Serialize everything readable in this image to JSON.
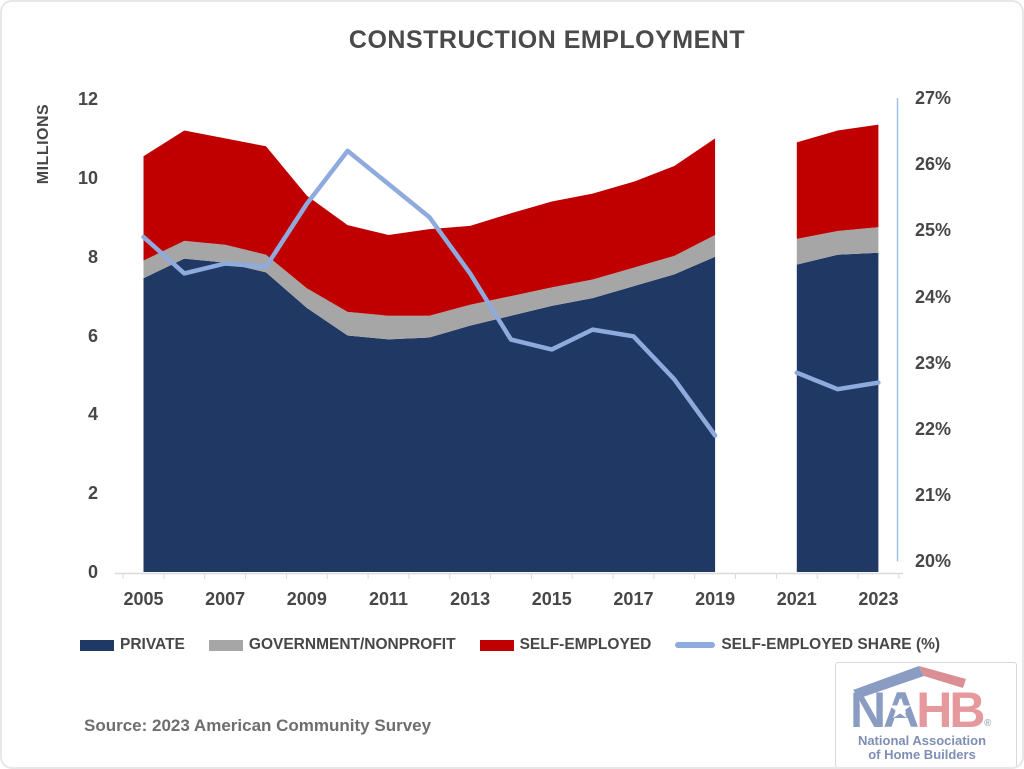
{
  "title": "CONSTRUCTION EMPLOYMENT",
  "source_note": "Source: 2023 American Community Survey",
  "legend": {
    "items": [
      {
        "label": "PRIVATE",
        "color": "#1F3864",
        "swatch": "area"
      },
      {
        "label": "GOVERNMENT/NONPROFIT",
        "color": "#A6A6A6",
        "swatch": "area"
      },
      {
        "label": "SELF-EMPLOYED",
        "color": "#C00000",
        "swatch": "area"
      },
      {
        "label": "SELF-EMPLOYED SHARE (%)",
        "color": "#8FAADC",
        "swatch": "line"
      }
    ]
  },
  "logo": {
    "brand_na": "NA",
    "brand_hb": "HB",
    "registered": "®",
    "line1": "National Association",
    "line2": "of Home Builders",
    "colors": {
      "blue": "#8B9CC3",
      "pink": "#E6999D",
      "roof_blue": "#8B9CC3",
      "roof_red": "#D98F93",
      "subtext": "#7E8EB4",
      "registered_gray": "#A6AEC2",
      "star": "#FFFFFF"
    }
  },
  "chart_data": {
    "type": "combo",
    "subtype": "stacked-area (left axis, millions) with line overlay (right axis, %); no data for 2020 leaves a gap",
    "years": [
      2005,
      2006,
      2007,
      2008,
      2009,
      2010,
      2011,
      2012,
      2013,
      2014,
      2015,
      2016,
      2017,
      2018,
      2019,
      2020,
      2021,
      2022,
      2023
    ],
    "series": [
      {
        "name": "PRIVATE",
        "type": "area",
        "axis": "left",
        "color": "#1F3864",
        "values": [
          7.45,
          7.95,
          7.85,
          7.6,
          6.7,
          6.0,
          5.9,
          5.95,
          6.25,
          6.5,
          6.75,
          6.95,
          7.25,
          7.55,
          8.0,
          null,
          7.8,
          8.05,
          8.1
        ]
      },
      {
        "name": "GOVERNMENT/NONPROFIT",
        "type": "area",
        "axis": "left",
        "color": "#A6A6A6",
        "values": [
          0.45,
          0.45,
          0.45,
          0.45,
          0.5,
          0.6,
          0.6,
          0.55,
          0.53,
          0.5,
          0.47,
          0.47,
          0.47,
          0.47,
          0.55,
          null,
          0.65,
          0.6,
          0.65
        ]
      },
      {
        "name": "SELF-EMPLOYED",
        "type": "area",
        "axis": "left",
        "color": "#C00000",
        "values": [
          2.65,
          2.8,
          2.7,
          2.75,
          2.35,
          2.2,
          2.05,
          2.2,
          2.0,
          2.1,
          2.18,
          2.18,
          2.18,
          2.28,
          2.45,
          null,
          2.45,
          2.55,
          2.6
        ]
      },
      {
        "name": "SELF-EMPLOYED SHARE (%)",
        "type": "line",
        "axis": "right",
        "color": "#8FAADC",
        "values": [
          24.9,
          24.35,
          24.5,
          24.45,
          25.4,
          26.2,
          25.7,
          25.2,
          24.35,
          23.35,
          23.2,
          23.5,
          23.4,
          22.75,
          21.9,
          null,
          22.85,
          22.6,
          22.7
        ]
      }
    ],
    "left_axis": {
      "label": "MILLIONS",
      "min": 0,
      "max": 12,
      "tick_labels": [
        "0",
        "2",
        "4",
        "6",
        "8",
        "10",
        "12"
      ]
    },
    "right_axis": {
      "min": 20,
      "max": 27,
      "tick_labels": [
        "20%",
        "21%",
        "22%",
        "23%",
        "24%",
        "25%",
        "26%",
        "27%"
      ],
      "axis_line_color": "#9DC3E6"
    },
    "x_axis": {
      "tick_labels": [
        "2005",
        "2007",
        "2009",
        "2011",
        "2013",
        "2015",
        "2017",
        "2019",
        "2021",
        "2023"
      ],
      "line_color": "#D9D9D9"
    },
    "grid": false,
    "legend_position": "bottom"
  }
}
